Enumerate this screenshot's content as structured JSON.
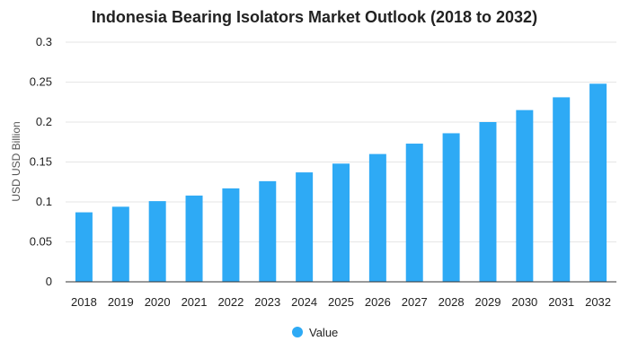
{
  "chart_data": {
    "type": "bar",
    "title": "Indonesia Bearing Isolators Market Outlook (2018 to 2032)",
    "xlabel": "",
    "ylabel": "USD USD Billion",
    "categories": [
      "2018",
      "2019",
      "2020",
      "2021",
      "2022",
      "2023",
      "2024",
      "2025",
      "2026",
      "2027",
      "2028",
      "2029",
      "2030",
      "2031",
      "2032"
    ],
    "series": [
      {
        "name": "Value",
        "values": [
          0.087,
          0.094,
          0.101,
          0.108,
          0.117,
          0.126,
          0.137,
          0.148,
          0.16,
          0.173,
          0.186,
          0.2,
          0.215,
          0.231,
          0.248
        ],
        "color": "#2eaaf5"
      }
    ],
    "ylim": [
      0,
      0.3
    ],
    "yticks": [
      "0",
      "0.05",
      "0.1",
      "0.15",
      "0.2",
      "0.25",
      "0.3"
    ],
    "grid": true,
    "legend": {
      "position": "bottom",
      "entries": [
        "Value"
      ]
    }
  }
}
